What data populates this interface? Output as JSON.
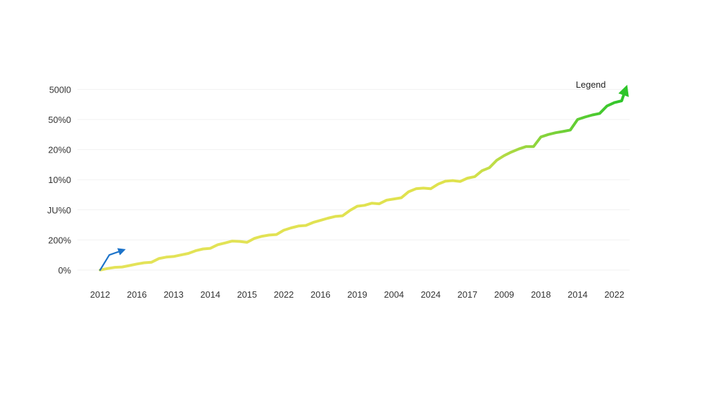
{
  "chart_data": {
    "type": "line",
    "title": "",
    "xlabel": "",
    "ylabel": "",
    "legend_label": "Legend",
    "legend_position": "top-right",
    "grid": true,
    "y_tick_labels": [
      "0%",
      "200%",
      "JU%0",
      "10%0",
      "20%0",
      "50%0",
      "500l0"
    ],
    "x_tick_labels": [
      "2012",
      "2016",
      "2013",
      "2014",
      "2015",
      "2022",
      "2016",
      "2019",
      "2004",
      "2024",
      "2017",
      "2009",
      "2018",
      "2014",
      "2022"
    ],
    "series": [
      {
        "color_start": "#e4e35a",
        "color_end": "#2ec52a",
        "points": [
          [
            0.0,
            0.0
          ],
          [
            0.2,
            0.05
          ],
          [
            0.4,
            0.09
          ],
          [
            0.6,
            0.1
          ],
          [
            0.8,
            0.15
          ],
          [
            1.0,
            0.2
          ],
          [
            1.2,
            0.24
          ],
          [
            1.4,
            0.26
          ],
          [
            1.6,
            0.38
          ],
          [
            1.8,
            0.43
          ],
          [
            2.0,
            0.45
          ],
          [
            2.2,
            0.5
          ],
          [
            2.4,
            0.55
          ],
          [
            2.6,
            0.64
          ],
          [
            2.8,
            0.7
          ],
          [
            3.0,
            0.72
          ],
          [
            3.2,
            0.84
          ],
          [
            3.4,
            0.9
          ],
          [
            3.6,
            0.96
          ],
          [
            3.8,
            0.95
          ],
          [
            4.0,
            0.92
          ],
          [
            4.2,
            1.05
          ],
          [
            4.4,
            1.12
          ],
          [
            4.6,
            1.16
          ],
          [
            4.8,
            1.18
          ],
          [
            5.0,
            1.32
          ],
          [
            5.2,
            1.4
          ],
          [
            5.4,
            1.46
          ],
          [
            5.6,
            1.48
          ],
          [
            5.8,
            1.58
          ],
          [
            6.0,
            1.65
          ],
          [
            6.2,
            1.72
          ],
          [
            6.4,
            1.78
          ],
          [
            6.6,
            1.8
          ],
          [
            6.8,
            1.98
          ],
          [
            7.0,
            2.12
          ],
          [
            7.2,
            2.15
          ],
          [
            7.4,
            2.22
          ],
          [
            7.6,
            2.2
          ],
          [
            7.8,
            2.32
          ],
          [
            8.0,
            2.36
          ],
          [
            8.2,
            2.4
          ],
          [
            8.4,
            2.6
          ],
          [
            8.6,
            2.7
          ],
          [
            8.8,
            2.72
          ],
          [
            9.0,
            2.7
          ],
          [
            9.2,
            2.85
          ],
          [
            9.4,
            2.95
          ],
          [
            9.6,
            2.97
          ],
          [
            9.8,
            2.94
          ],
          [
            10.0,
            3.05
          ],
          [
            10.2,
            3.1
          ],
          [
            10.4,
            3.3
          ],
          [
            10.6,
            3.4
          ],
          [
            10.8,
            3.65
          ],
          [
            11.0,
            3.8
          ],
          [
            11.2,
            3.92
          ],
          [
            11.4,
            4.02
          ],
          [
            11.6,
            4.1
          ],
          [
            11.8,
            4.1
          ],
          [
            12.0,
            4.42
          ],
          [
            12.2,
            4.5
          ],
          [
            12.4,
            4.56
          ],
          [
            12.6,
            4.6
          ],
          [
            12.8,
            4.65
          ],
          [
            13.0,
            5.0
          ],
          [
            13.2,
            5.08
          ],
          [
            13.4,
            5.15
          ],
          [
            13.6,
            5.2
          ],
          [
            13.8,
            5.45
          ],
          [
            14.0,
            5.56
          ],
          [
            14.2,
            5.62
          ],
          [
            14.3,
            5.98
          ]
        ]
      },
      {
        "color": "#1c73c9",
        "points": [
          [
            0.0,
            0.0
          ],
          [
            0.25,
            0.5
          ],
          [
            0.6,
            0.65
          ]
        ]
      }
    ]
  }
}
